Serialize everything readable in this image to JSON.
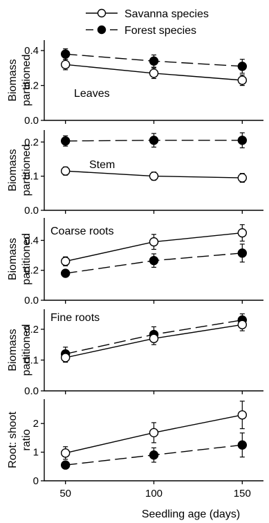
{
  "legend": {
    "items": [
      {
        "label": "Savanna species",
        "marker": "open-circle",
        "line": "solid"
      },
      {
        "label": "Forest species",
        "marker": "filled-circle",
        "line": "dashed"
      }
    ]
  },
  "chart_data": {
    "type": "line",
    "xlabel": "Seedling age (days)",
    "x": [
      50,
      100,
      150
    ],
    "x_tick_labels": [
      "50",
      "100",
      "150"
    ],
    "xlim": [
      38,
      162
    ],
    "grid": false,
    "legend_position": "top",
    "series_styles": [
      {
        "name": "Savanna species",
        "marker": "open-circle",
        "line": "solid",
        "color": "#000000"
      },
      {
        "name": "Forest species",
        "marker": "filled-circle",
        "line": "dashed",
        "color": "#000000"
      }
    ],
    "panels": [
      {
        "annotation": "Leaves",
        "ylabel": [
          "Biomass",
          "partitioned"
        ],
        "ylim": [
          0,
          0.46
        ],
        "yticks": [
          0,
          0.2,
          0.4
        ],
        "ytick_labels": [
          "0.0",
          "0.2",
          "0.4"
        ],
        "series": [
          {
            "name": "Savanna species",
            "values": [
              0.32,
              0.27,
              0.23
            ],
            "errors": [
              0.03,
              0.03,
              0.03
            ]
          },
          {
            "name": "Forest species",
            "values": [
              0.38,
              0.34,
              0.31
            ],
            "errors": [
              0.03,
              0.035,
              0.04
            ]
          }
        ]
      },
      {
        "annotation": "Stem",
        "ylabel": [
          "Biomass",
          "partitioned"
        ],
        "ylim": [
          0,
          0.235
        ],
        "yticks": [
          0,
          0.1,
          0.2
        ],
        "ytick_labels": [
          "0.0",
          "0.1",
          "0.2"
        ],
        "series": [
          {
            "name": "Savanna species",
            "values": [
              0.115,
              0.1,
              0.095
            ],
            "errors": [
              0.012,
              0.012,
              0.013
            ]
          },
          {
            "name": "Forest species",
            "values": [
              0.203,
              0.205,
              0.205
            ],
            "errors": [
              0.015,
              0.02,
              0.022
            ]
          }
        ]
      },
      {
        "annotation": "Coarse roots",
        "ylabel": [
          "Biomass",
          "partitioned"
        ],
        "ylim": [
          0,
          0.55
        ],
        "yticks": [
          0,
          0.2,
          0.4
        ],
        "ytick_labels": [
          "0.0",
          "0.2",
          "0.4"
        ],
        "series": [
          {
            "name": "Savanna species",
            "values": [
              0.26,
              0.39,
              0.45
            ],
            "errors": [
              0.03,
              0.05,
              0.055
            ]
          },
          {
            "name": "Forest species",
            "values": [
              0.18,
              0.265,
              0.315
            ],
            "errors": [
              0.02,
              0.045,
              0.06
            ]
          }
        ]
      },
      {
        "annotation": "Fine roots",
        "ylabel": [
          "Biomass",
          "partitioned"
        ],
        "ylim": [
          0,
          0.265
        ],
        "yticks": [
          0,
          0.1,
          0.2
        ],
        "ytick_labels": [
          "0.0",
          "0.1",
          "0.2"
        ],
        "series": [
          {
            "name": "Savanna species",
            "values": [
              0.108,
              0.17,
              0.215
            ],
            "errors": [
              0.015,
              0.02,
              0.02
            ]
          },
          {
            "name": "Forest species",
            "values": [
              0.12,
              0.183,
              0.23
            ],
            "errors": [
              0.022,
              0.025,
              0.02
            ]
          }
        ]
      },
      {
        "annotation": "",
        "ylabel": [
          "Root: shoot",
          "ratio"
        ],
        "ylim": [
          0,
          2.85
        ],
        "yticks": [
          0,
          1,
          2
        ],
        "ytick_labels": [
          "0",
          "1",
          "2"
        ],
        "series": [
          {
            "name": "Savanna species",
            "values": [
              0.97,
              1.68,
              2.3
            ],
            "errors": [
              0.22,
              0.35,
              0.48
            ]
          },
          {
            "name": "Forest species",
            "values": [
              0.55,
              0.9,
              1.25
            ],
            "errors": [
              0.08,
              0.25,
              0.42
            ]
          }
        ]
      }
    ]
  }
}
